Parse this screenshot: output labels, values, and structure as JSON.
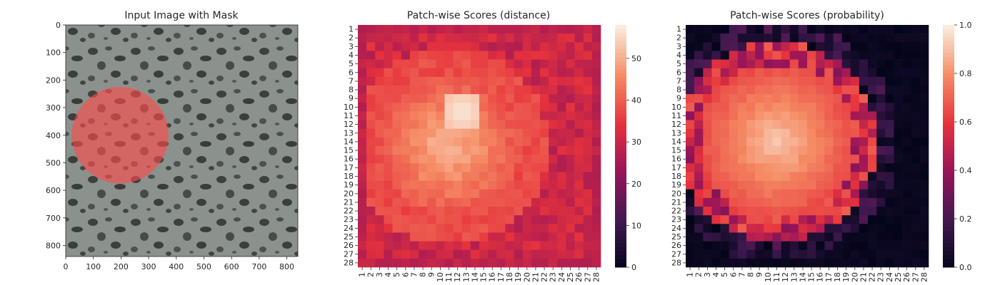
{
  "chart_data": [
    {
      "type": "image",
      "title": "Input Image with Mask",
      "xticks": [
        0,
        100,
        200,
        300,
        400,
        500,
        600,
        700,
        800
      ],
      "yticks": [
        0,
        100,
        200,
        300,
        400,
        500,
        600,
        700,
        800
      ],
      "xlim": [
        0,
        840
      ],
      "ylim": [
        840,
        0
      ],
      "mask": {
        "cx": 197,
        "cy": 400,
        "rx": 175,
        "ry": 175,
        "color": "#ff4a4a"
      }
    },
    {
      "type": "heatmap",
      "title": "Patch-wise Scores (distance)",
      "xticklabels": [
        "1",
        "2",
        "3",
        "4",
        "5",
        "6",
        "7",
        "8",
        "9",
        "10",
        "11",
        "12",
        "13",
        "14",
        "15",
        "16",
        "17",
        "18",
        "19",
        "20",
        "21",
        "22",
        "23",
        "24",
        "25",
        "26",
        "27",
        "28"
      ],
      "yticklabels": [
        "1",
        "2",
        "3",
        "4",
        "5",
        "6",
        "7",
        "8",
        "9",
        "10",
        "11",
        "12",
        "13",
        "14",
        "15",
        "16",
        "17",
        "18",
        "19",
        "20",
        "21",
        "22",
        "23",
        "24",
        "25",
        "26",
        "27",
        "28"
      ],
      "colorbar_ticks": [
        0,
        10,
        20,
        30,
        40,
        50
      ],
      "vmin": 0,
      "vmax": 58,
      "colormap": "rocket",
      "hotspot": {
        "row": 10.5,
        "col": 12.5,
        "peak": 58
      },
      "blob": {
        "row": 14.5,
        "col": 11,
        "radius": 8.5,
        "level": 50
      }
    },
    {
      "type": "heatmap",
      "title": "Patch-wise Scores (probability)",
      "xticklabels": [
        "1",
        "2",
        "3",
        "4",
        "5",
        "6",
        "7",
        "8",
        "9",
        "10",
        "11",
        "12",
        "13",
        "14",
        "15",
        "16",
        "17",
        "18",
        "19",
        "20",
        "21",
        "22",
        "23",
        "24",
        "25",
        "26",
        "27",
        "28"
      ],
      "yticklabels": [
        "1",
        "2",
        "3",
        "4",
        "5",
        "6",
        "7",
        "8",
        "9",
        "10",
        "11",
        "12",
        "13",
        "14",
        "15",
        "16",
        "17",
        "18",
        "19",
        "20",
        "21",
        "22",
        "23",
        "24",
        "25",
        "26",
        "27",
        "28"
      ],
      "colorbar_ticks": [
        0.0,
        0.2,
        0.4,
        0.6,
        0.8,
        1.0
      ],
      "colorbar_ticklabels": [
        "0.0",
        "0.2",
        "0.4",
        "0.6",
        "0.8",
        "1.0"
      ],
      "vmin": 0,
      "vmax": 1,
      "colormap": "rocket",
      "blob": {
        "row": 14,
        "col": 11,
        "radius": 9,
        "level": 0.9
      }
    }
  ]
}
